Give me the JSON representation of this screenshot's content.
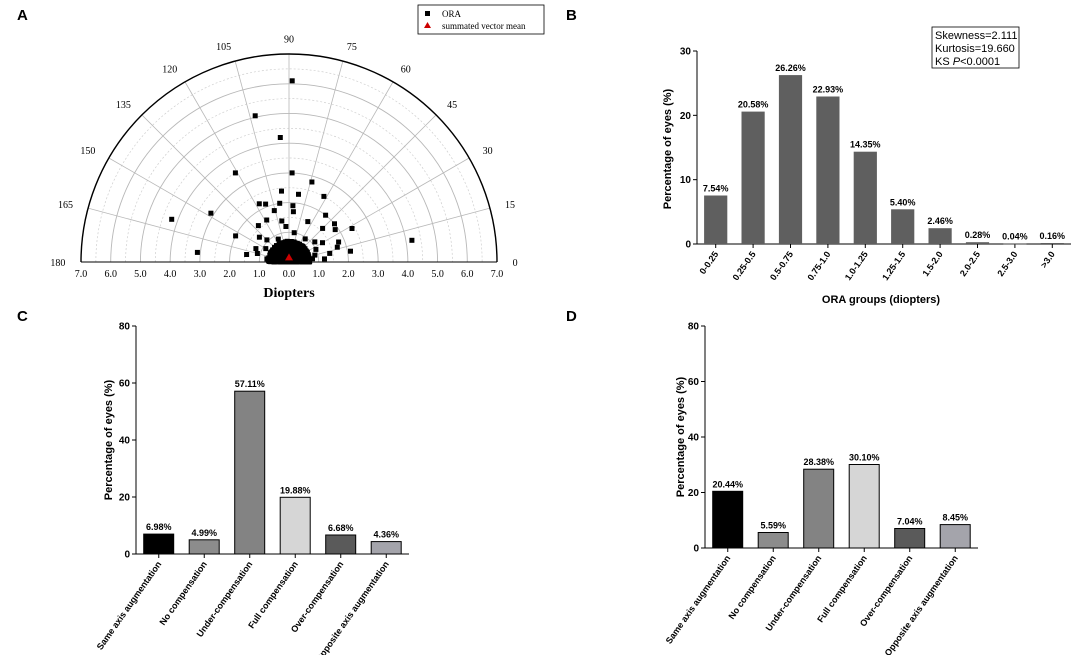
{
  "chart_data": [
    {
      "panel": "A",
      "type": "scatter",
      "subtype": "polar-half",
      "xlabel": "Diopters",
      "radial_max": 7.0,
      "radial_ticks_left": [
        "7.0",
        "6.0",
        "5.0",
        "4.0",
        "3.0",
        "2.0",
        "1.0",
        "0.0"
      ],
      "radial_ticks_right": [
        "0.0",
        "1.0",
        "2.0",
        "3.0",
        "4.0",
        "5.0",
        "6.0",
        "7.0"
      ],
      "angle_ticks": [
        "0",
        "15",
        "30",
        "45",
        "60",
        "75",
        "90",
        "105",
        "120",
        "135",
        "150",
        "165",
        "180"
      ],
      "legend": {
        "position": "top-center",
        "ora_label": "ORA",
        "mean_label": "summated vector mean"
      },
      "colors": {
        "ora": "#000000",
        "mean": "#cc0000",
        "grid": "#bbbbbb"
      },
      "vector_mean": {
        "magnitude": 0.12,
        "angle": 90
      },
      "points_sample": [
        [
          0.3,
          3
        ],
        [
          0.42,
          10
        ],
        [
          0.55,
          20
        ],
        [
          0.6,
          33
        ],
        [
          0.7,
          48
        ],
        [
          0.5,
          60
        ],
        [
          0.4,
          75
        ],
        [
          0.35,
          95
        ],
        [
          0.5,
          110
        ],
        [
          0.6,
          125
        ],
        [
          0.55,
          140
        ],
        [
          0.45,
          160
        ],
        [
          0.3,
          176
        ],
        [
          0.8,
          8
        ],
        [
          0.9,
          15
        ],
        [
          1.0,
          25
        ],
        [
          1.1,
          38
        ],
        [
          0.95,
          55
        ],
        [
          1.0,
          80
        ],
        [
          1.2,
          95
        ],
        [
          0.85,
          115
        ],
        [
          1.05,
          135
        ],
        [
          0.9,
          150
        ],
        [
          1.1,
          165
        ],
        [
          0.75,
          172
        ],
        [
          1.2,
          5
        ],
        [
          1.4,
          12
        ],
        [
          1.3,
          30
        ],
        [
          1.6,
          45
        ],
        [
          1.5,
          65
        ],
        [
          1.7,
          85
        ],
        [
          1.4,
          100
        ],
        [
          1.6,
          118
        ],
        [
          1.3,
          140
        ],
        [
          1.2,
          158
        ],
        [
          1.45,
          170
        ],
        [
          3.0,
          88
        ],
        [
          6.1,
          89
        ],
        [
          4.2,
          94
        ],
        [
          5.05,
          103
        ],
        [
          3.5,
          121
        ],
        [
          2.2,
          117
        ],
        [
          3.1,
          148
        ],
        [
          4.2,
          160
        ],
        [
          3.1,
          174
        ],
        [
          4.2,
          10
        ],
        [
          2.4,
          28
        ],
        [
          2.0,
          40
        ],
        [
          1.7,
          17
        ],
        [
          2.5,
          62
        ],
        [
          2.8,
          74
        ],
        [
          2.3,
          82
        ],
        [
          1.9,
          86
        ],
        [
          2.0,
          99
        ],
        [
          1.8,
          106
        ],
        [
          1.6,
          130
        ],
        [
          2.0,
          154
        ],
        [
          2.1,
          10
        ],
        [
          1.8,
          22
        ],
        [
          1.9,
          35
        ],
        [
          2.0,
          52
        ],
        [
          2.4,
          96
        ],
        [
          2.1,
          112
        ]
      ]
    },
    {
      "panel": "B",
      "type": "bar",
      "title": "",
      "xlabel": "ORA groups (diopters)",
      "ylabel": "Percentage of eyes (%)",
      "ylim": [
        0,
        30
      ],
      "yticks": [
        0,
        10,
        20,
        30
      ],
      "categories": [
        "0-0.25",
        "0.25-0.5",
        "0.5-0.75",
        "0.75-1.0",
        "1.0-1.25",
        "1.25-1.5",
        "1.5-2.0",
        "2.0-2.5",
        "2.5-3.0",
        ">3.0"
      ],
      "values": [
        7.54,
        20.58,
        26.26,
        22.93,
        14.35,
        5.4,
        2.46,
        0.28,
        0.04,
        0.16
      ],
      "labels": [
        "7.54%",
        "20.58%",
        "26.26%",
        "22.93%",
        "14.35%",
        "5.40%",
        "2.46%",
        "0.28%",
        "0.04%",
        "0.16%"
      ],
      "bar_color": "#5f5f5f",
      "stats": {
        "line1": "Skewness=2.111",
        "line2": "Kurtosis=19.660",
        "line3_prefix": "KS ",
        "line3_italic": "P",
        "line3_suffix": "<0.0001"
      }
    },
    {
      "panel": "C",
      "type": "bar",
      "xlabel": "",
      "ylabel": "Percentage of eyes (%)",
      "ylim": [
        0,
        80
      ],
      "yticks": [
        0,
        20,
        40,
        60,
        80
      ],
      "categories": [
        "Same axis augmentation",
        "No compensation",
        "Under-compensation",
        "Full compensation",
        "Over-compensation",
        "Opposite axis augmentation"
      ],
      "values": [
        6.98,
        4.99,
        57.11,
        19.88,
        6.68,
        4.36
      ],
      "labels": [
        "6.98%",
        "4.99%",
        "57.11%",
        "19.88%",
        "6.68%",
        "4.36%"
      ],
      "bar_colors": [
        "#000000",
        "#8c8c8c",
        "#838383",
        "#d6d6d6",
        "#5a5a5a",
        "#a4a4ab"
      ]
    },
    {
      "panel": "D",
      "type": "bar",
      "xlabel": "",
      "ylabel": "Percentage of eyes (%)",
      "ylim": [
        0,
        80
      ],
      "yticks": [
        0,
        20,
        40,
        60,
        80
      ],
      "categories": [
        "Same axis augmentation",
        "No compensation",
        "Under-compensation",
        "Full compensation",
        "Over-compensation",
        "Opposite axis augmentation"
      ],
      "values": [
        20.44,
        5.59,
        28.38,
        30.1,
        7.04,
        8.45
      ],
      "labels": [
        "20.44%",
        "5.59%",
        "28.38%",
        "30.10%",
        "7.04%",
        "8.45%"
      ],
      "bar_colors": [
        "#000000",
        "#8c8c8c",
        "#838383",
        "#d6d6d6",
        "#5a5a5a",
        "#a4a4ab"
      ]
    }
  ],
  "panel_letters": {
    "a": "A",
    "b": "B",
    "c": "C",
    "d": "D"
  }
}
